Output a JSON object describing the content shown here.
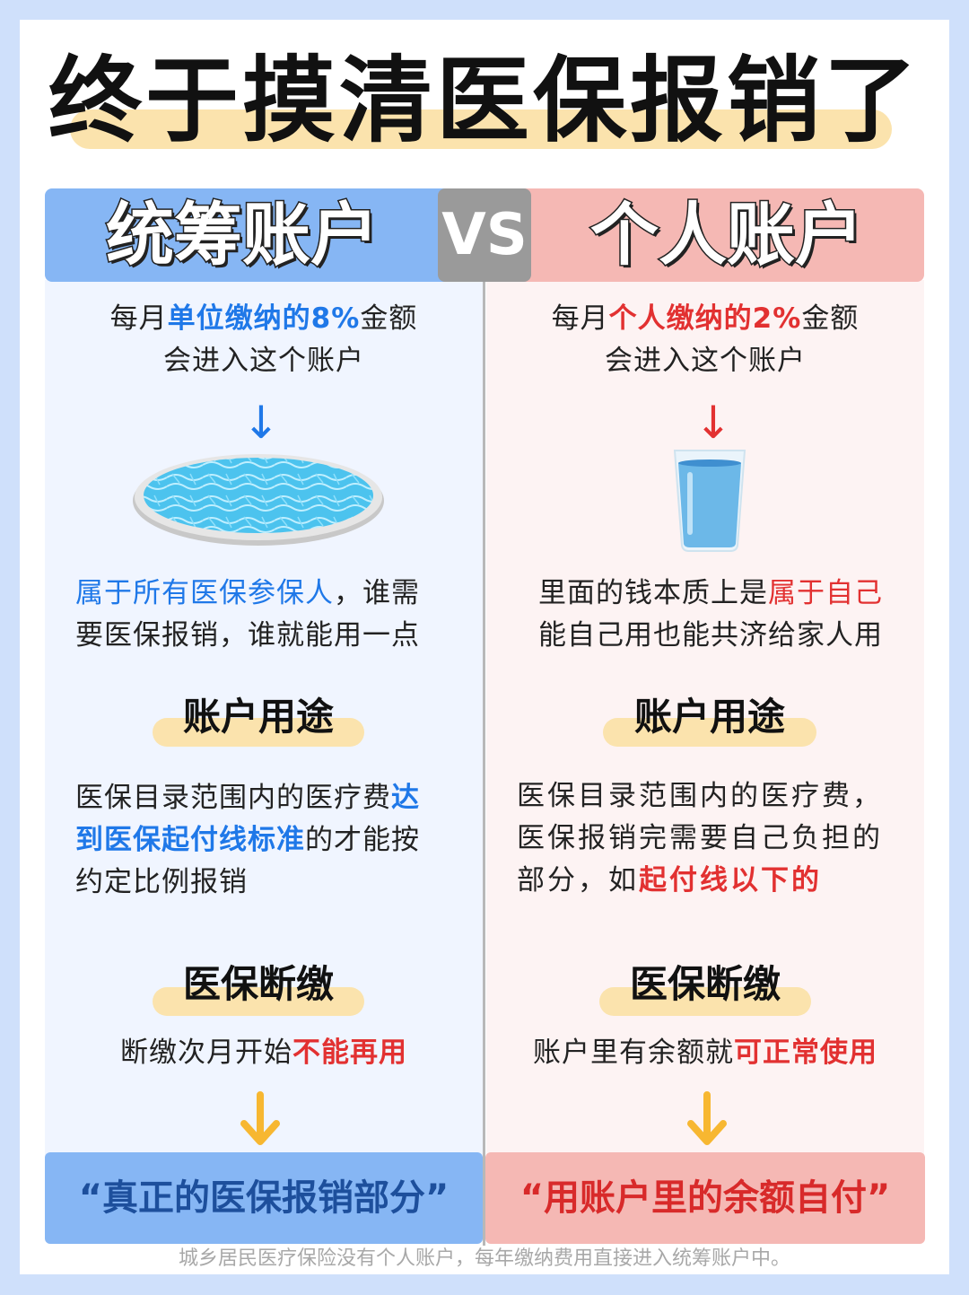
{
  "title": "终于摸清医保报销了",
  "header": {
    "left": "统筹账户",
    "vs": "VS",
    "right": "个人账户"
  },
  "left": {
    "intro_pre": "每月",
    "intro_hl": "单位缴纳的8%",
    "intro_post": "金额",
    "intro_line2": "会进入这个账户",
    "desc_hl": "属于所有医保参保人",
    "desc_post": "，谁需",
    "desc_line2": "要医保报销，谁就能用一点",
    "usage_title": "账户用途",
    "usage_pre": "医保目录范围内的医疗费",
    "usage_hl1": "达",
    "usage_hl2": "到医保起付线标准",
    "usage_mid": "的才能按",
    "usage_line3": "约定比例报销",
    "stop_title": "医保断缴",
    "stop_pre": "断缴次月开始",
    "stop_hl": "不能再用",
    "bottom": "“真正的医保报销部分”"
  },
  "right": {
    "intro_pre": "每月",
    "intro_hl": "个人缴纳的2%",
    "intro_post": "金额",
    "intro_line2": "会进入这个账户",
    "desc_pre": "里面的钱本质上是",
    "desc_hl": "属于自己",
    "desc_line2": "能自己用也能共济给家人用",
    "usage_title": "账户用途",
    "usage_line1": "医保目录范围内的医疗费，",
    "usage_line2": "医保报销完需要自己负担的",
    "usage_pre3": "部分，如",
    "usage_hl3": "起付线以下的",
    "stop_title": "医保断缴",
    "stop_pre": "账户里有余额就",
    "stop_hl": "可正常使用",
    "bottom": "“用账户里的余额自付”"
  },
  "footer": "城乡居民医疗保险没有个人账户，每年缴纳费用直接进入统筹账户中。",
  "icons": [
    "arrow-down-blue-icon",
    "pool-icon",
    "arrow-down-red-icon",
    "water-glass-icon",
    "arrow-down-yellow-icon"
  ],
  "colors": {
    "blue": "#1f78e8",
    "red": "#e23131",
    "header_blue": "#86b6f4",
    "header_red": "#f5b8b4",
    "highlight": "#fbe3ad",
    "arrow_yellow": "#f7b731"
  }
}
